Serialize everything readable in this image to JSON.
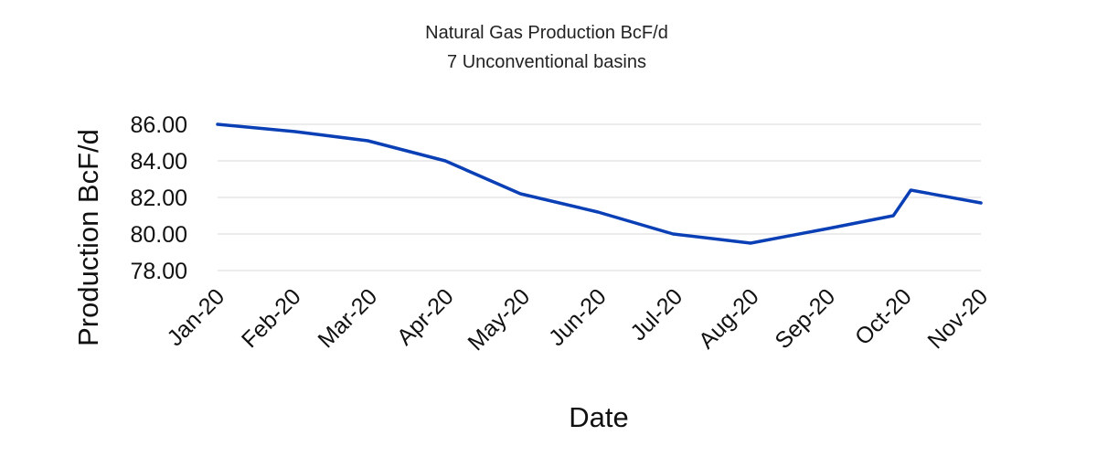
{
  "chart_data": {
    "type": "line",
    "title": "Natural Gas Production BcF/d",
    "subtitle": "7 Unconventional basins",
    "xlabel": "Date",
    "ylabel": "Production BcF/d",
    "ylim": [
      78,
      86
    ],
    "yticks": [
      "78.00",
      "80.00",
      "82.00",
      "84.00",
      "86.00"
    ],
    "grid": true,
    "x_tick_labels": [
      "Jan-20",
      "Feb-20",
      "Mar-20",
      "Apr-20",
      "May-20",
      "Jun-20",
      "Jul-20",
      "Aug-20",
      "Sep-20",
      "Oct-20",
      "Nov-20"
    ],
    "series": [
      {
        "color": "#0a3fb5",
        "points": [
          {
            "x": "2020-01-01",
            "y": 86.0
          },
          {
            "x": "2020-02-01",
            "y": 85.6
          },
          {
            "x": "2020-03-01",
            "y": 85.1
          },
          {
            "x": "2020-04-01",
            "y": 84.0
          },
          {
            "x": "2020-05-01",
            "y": 82.2
          },
          {
            "x": "2020-06-01",
            "y": 81.2
          },
          {
            "x": "2020-07-01",
            "y": 80.0
          },
          {
            "x": "2020-08-01",
            "y": 79.5
          },
          {
            "x": "2020-09-01",
            "y": 80.3
          },
          {
            "x": "2020-09-27",
            "y": 81.0
          },
          {
            "x": "2020-10-04",
            "y": 82.4
          },
          {
            "x": "2020-11-01",
            "y": 81.7
          }
        ]
      }
    ]
  }
}
